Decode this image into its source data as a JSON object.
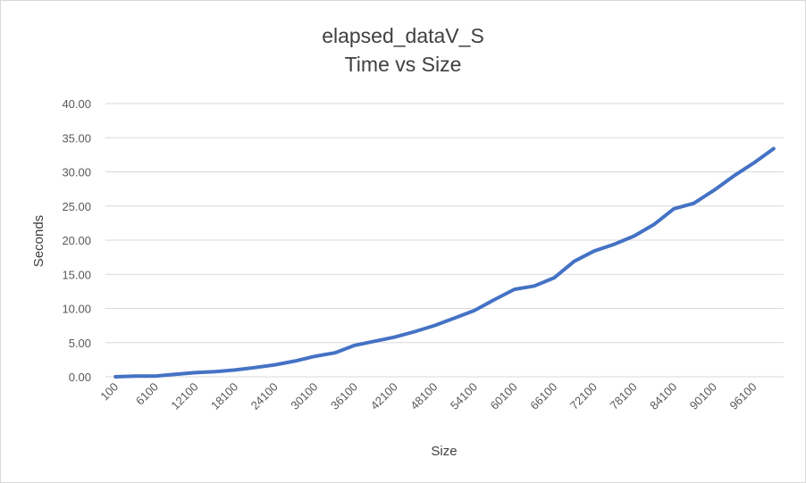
{
  "chart_data": {
    "type": "line",
    "title": "elapsed_dataV_S",
    "subtitle": "Time vs Size",
    "xlabel": "Size",
    "ylabel": "Seconds",
    "ylim": [
      0,
      40
    ],
    "y_ticks": [
      "0.00",
      "5.00",
      "10.00",
      "15.00",
      "20.00",
      "25.00",
      "30.00",
      "35.00",
      "40.00"
    ],
    "x_tick_labels": [
      "100",
      "6100",
      "12100",
      "18100",
      "24100",
      "30100",
      "36100",
      "42100",
      "48100",
      "54100",
      "60100",
      "66100",
      "72100",
      "78100",
      "84100",
      "90100",
      "96100"
    ],
    "grid": true,
    "legend": "none",
    "line_color": "#4472c4",
    "series": [
      {
        "x": [
          100,
          3100,
          6100,
          9100,
          12100,
          15100,
          18100,
          21100,
          24100,
          27100,
          30100,
          33100,
          36100,
          39100,
          42100,
          45100,
          48100,
          51100,
          54100,
          57100,
          60100,
          63100,
          66100,
          69100,
          72100,
          75100,
          78100,
          81100,
          84100,
          87100,
          90100,
          93100,
          96100,
          99100
        ],
        "values": [
          0.0,
          0.1,
          0.1,
          0.35,
          0.6,
          0.75,
          1.0,
          1.35,
          1.75,
          2.3,
          3.0,
          3.5,
          4.6,
          5.2,
          5.8,
          6.6,
          7.5,
          8.6,
          9.7,
          11.3,
          12.8,
          13.3,
          14.5,
          16.9,
          18.4,
          19.4,
          20.6,
          22.3,
          24.6,
          25.4,
          27.3,
          29.4,
          31.3,
          33.4
        ]
      }
    ]
  }
}
